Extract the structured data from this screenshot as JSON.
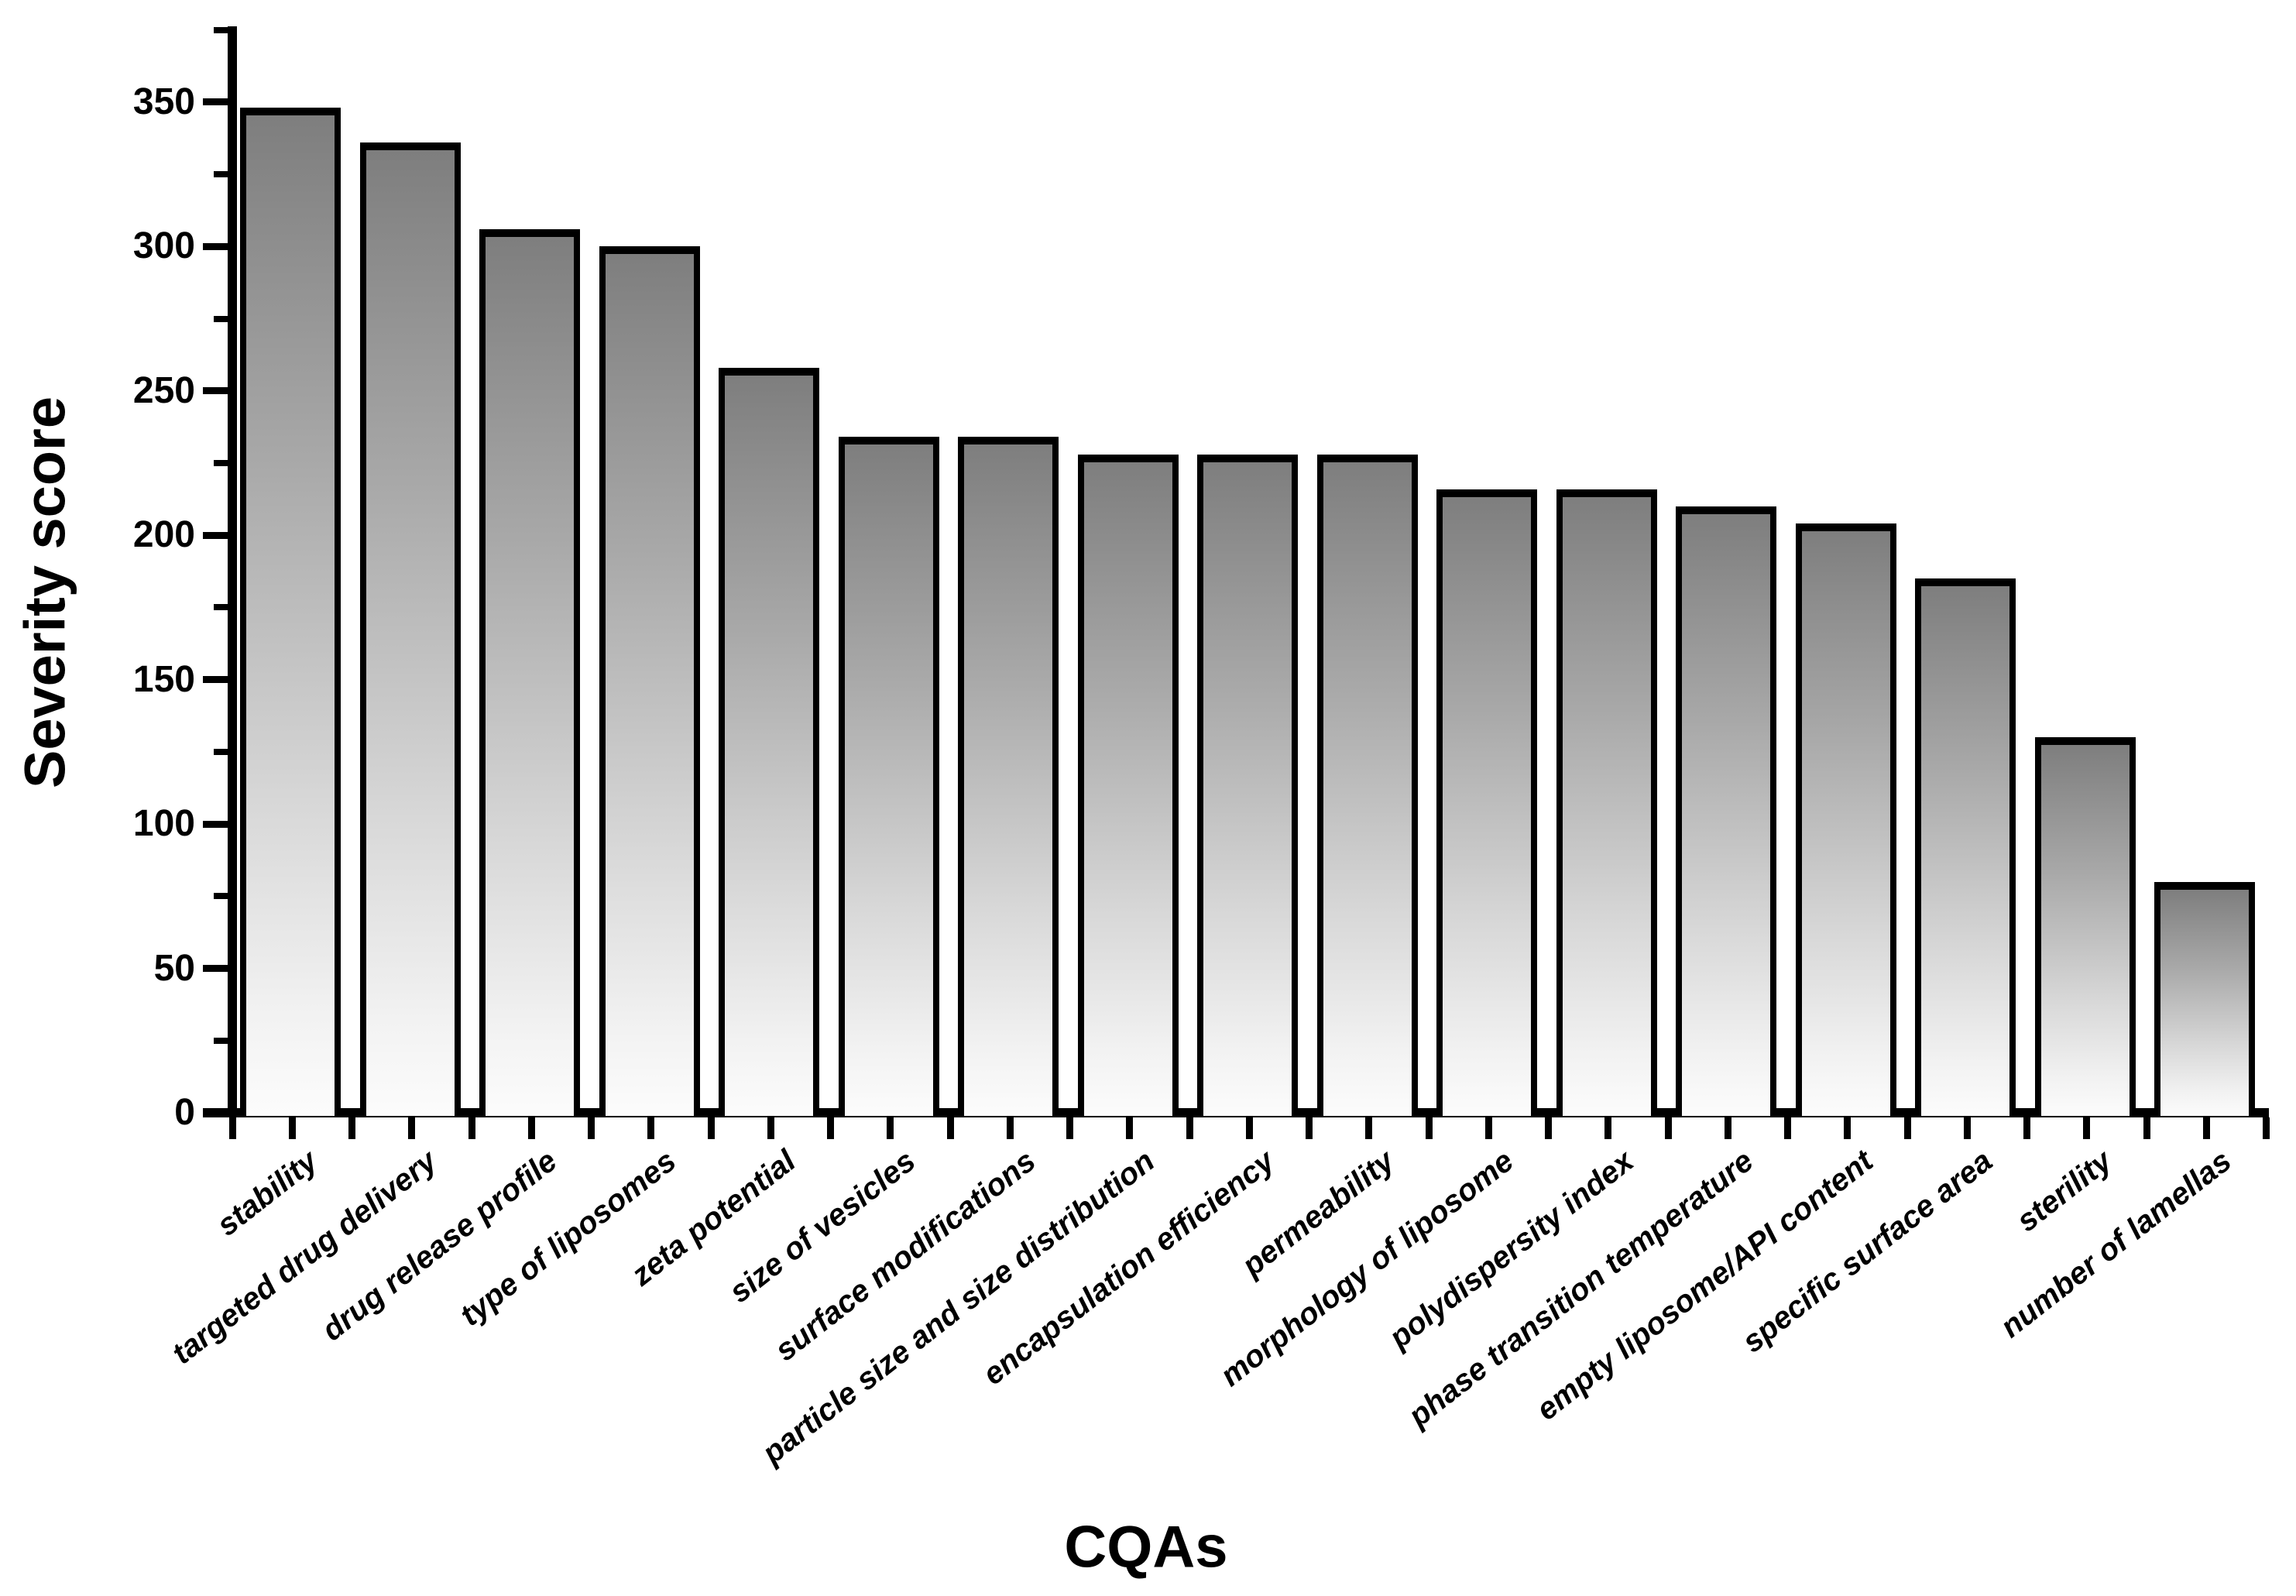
{
  "chart_data": {
    "type": "bar",
    "title": "",
    "xlabel": "CQAs",
    "ylabel": "Severity score",
    "categories": [
      "stability",
      "targeted drug delivery",
      "drug release profile",
      "type of liposomes",
      "zeta potential",
      "size of vesicles",
      "surface modifications",
      "particle size and size distribution",
      "encapsulation efficiency",
      "permeability",
      "morphology of liposome",
      "polydispersity index",
      "phase transition temperature",
      "empty liposome/API content",
      "specific surface area",
      "sterility",
      "number of lamellas"
    ],
    "values": [
      348,
      336,
      306,
      300,
      258,
      234,
      234,
      228,
      228,
      228,
      216,
      216,
      210,
      204,
      185,
      130,
      80
    ],
    "ylim": [
      0,
      375
    ],
    "yticks": [
      0,
      50,
      100,
      150,
      200,
      250,
      300,
      350
    ],
    "ytick_minor_interval": 25,
    "grid": false,
    "legend": "none",
    "bar_border_color": "#000000",
    "bar_fill_top": "#7e7e7e",
    "bar_fill_bottom": "#fcfcfc",
    "background": "#ffffff"
  }
}
